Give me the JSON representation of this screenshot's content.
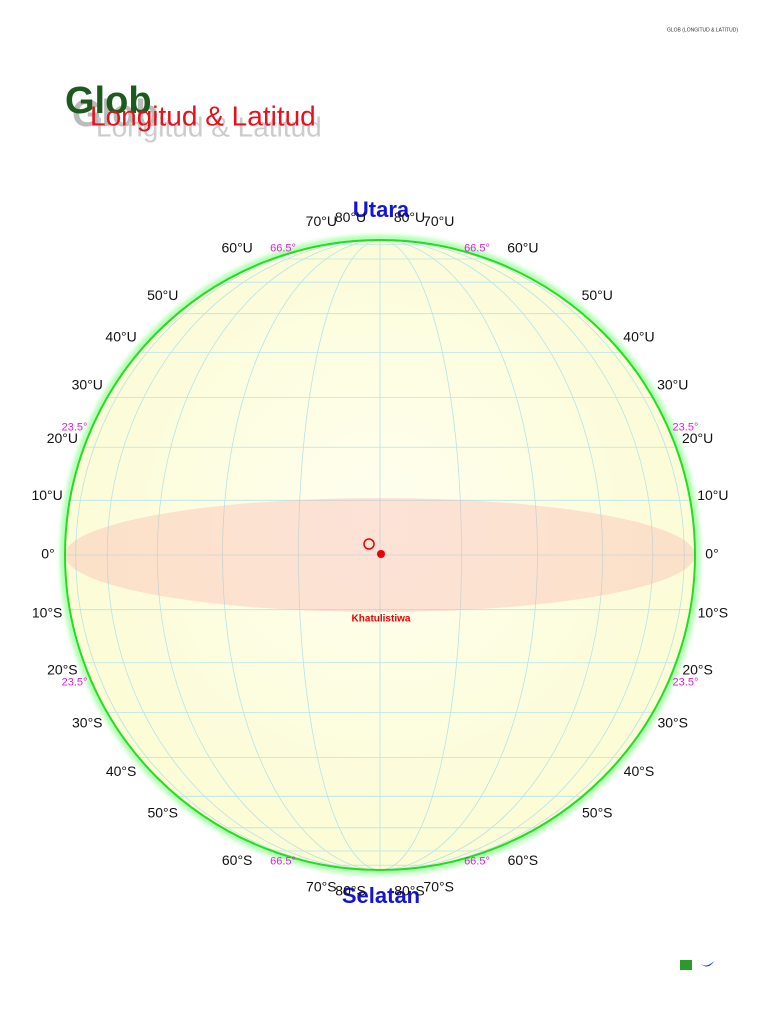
{
  "header": {
    "code": "GLOB (LONGITUD & LATITUD)"
  },
  "title": {
    "main": "Glob",
    "sub": "Longitud & Latitud"
  },
  "poles": {
    "north": "Utara",
    "south": "Selatan"
  },
  "equator": {
    "label": "0°",
    "name": "Khatulistiwa"
  },
  "latitudes": {
    "north": [
      "10°U",
      "20°U",
      "30°U",
      "40°U",
      "50°U",
      "60°U",
      "70°U",
      "80°U"
    ],
    "south": [
      "10°S",
      "20°S",
      "30°S",
      "40°S",
      "50°S",
      "60°S",
      "70°S",
      "80°S"
    ]
  },
  "special": {
    "tropic": "23.5°",
    "polar": "66.5°"
  }
}
